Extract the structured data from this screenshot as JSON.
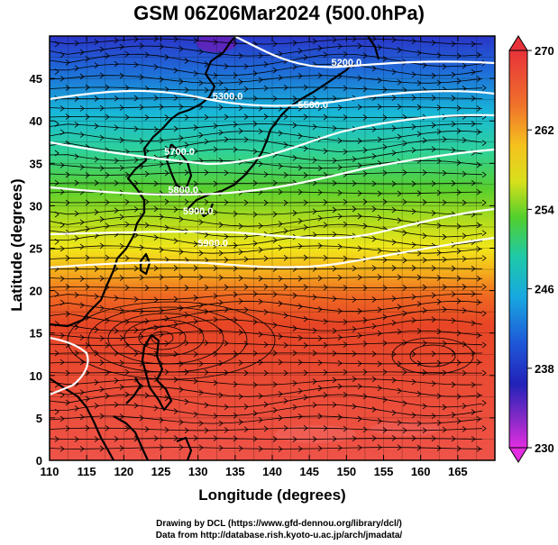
{
  "title": "GSM 06Z06Mar2024 (500.0hPa)",
  "credits": {
    "line1": "Drawing by DCL (https://www.gfd-dennou.org/library/dcl/)",
    "line2": "Data from http://database.rish.kyoto-u.ac.jp/arch/jmadata/"
  },
  "colors": {
    "frame": "#000000",
    "streamline": "#000000",
    "contour": "#ffffff",
    "coast": "#000000"
  },
  "map": {
    "x_axis": {
      "label": "Longitude (degrees)",
      "range": [
        110,
        170
      ],
      "ticks": [
        110,
        115,
        120,
        125,
        130,
        135,
        140,
        145,
        150,
        155,
        160,
        165
      ]
    },
    "y_axis": {
      "label": "Latitude  (degrees)",
      "range": [
        0,
        50
      ],
      "ticks": [
        0,
        5,
        10,
        15,
        20,
        25,
        30,
        35,
        40,
        45
      ]
    },
    "colorbar": {
      "range": [
        230,
        270
      ],
      "tick_labels": [
        "270",
        "262",
        "254",
        "246",
        "238",
        "230"
      ],
      "tick_values": [
        270,
        262,
        254,
        246,
        238,
        230
      ]
    },
    "contour_labels": [
      {
        "text": "5200.0",
        "lon": 150,
        "lat": 46.5
      },
      {
        "text": "5300.0",
        "lon": 134,
        "lat": 42.5
      },
      {
        "text": "5500.0",
        "lon": 145.5,
        "lat": 41.5
      },
      {
        "text": "5700.0",
        "lon": 127.5,
        "lat": 36
      },
      {
        "text": "5800.0",
        "lon": 128,
        "lat": 31.5
      },
      {
        "text": "5900.0",
        "lon": 130,
        "lat": 29
      },
      {
        "text": "5900.0",
        "lon": 132,
        "lat": 25.2
      }
    ]
  }
}
